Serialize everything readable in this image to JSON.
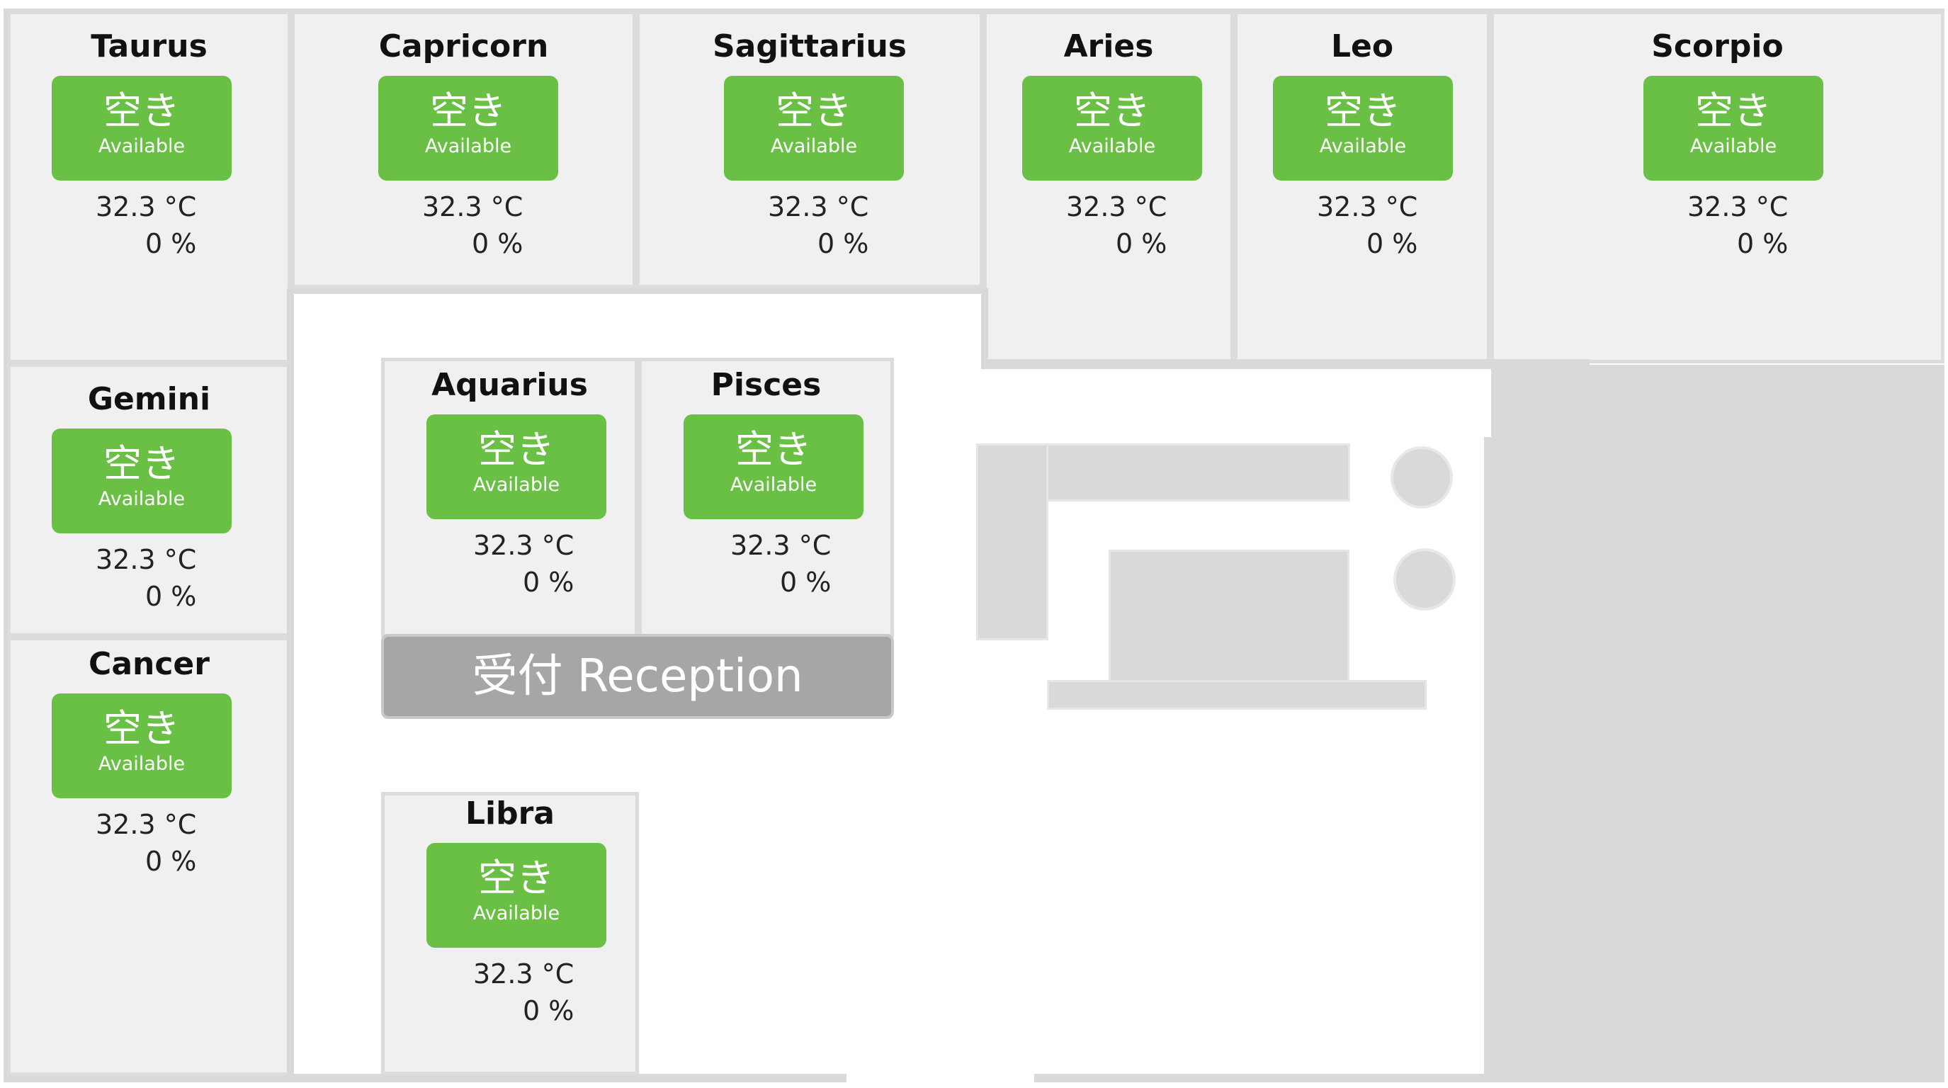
{
  "rooms": [
    {
      "name": "Taurus",
      "status_ja": "空き",
      "status_en": "Available",
      "temperature": "32.3 °C",
      "humidity": "0 %"
    },
    {
      "name": "Capricorn",
      "status_ja": "空き",
      "status_en": "Available",
      "temperature": "32.3 °C",
      "humidity": "0 %"
    },
    {
      "name": "Sagittarius",
      "status_ja": "空き",
      "status_en": "Available",
      "temperature": "32.3 °C",
      "humidity": "0 %"
    },
    {
      "name": "Aries",
      "status_ja": "空き",
      "status_en": "Available",
      "temperature": "32.3 °C",
      "humidity": "0 %"
    },
    {
      "name": "Leo",
      "status_ja": "空き",
      "status_en": "Available",
      "temperature": "32.3 °C",
      "humidity": "0 %"
    },
    {
      "name": "Scorpio",
      "status_ja": "空き",
      "status_en": "Available",
      "temperature": "32.3 °C",
      "humidity": "0 %"
    },
    {
      "name": "Gemini",
      "status_ja": "空き",
      "status_en": "Available",
      "temperature": "32.3 °C",
      "humidity": "0 %"
    },
    {
      "name": "Aquarius",
      "status_ja": "空き",
      "status_en": "Available",
      "temperature": "32.3 °C",
      "humidity": "0 %"
    },
    {
      "name": "Pisces",
      "status_ja": "空き",
      "status_en": "Available",
      "temperature": "32.3 °C",
      "humidity": "0 %"
    },
    {
      "name": "Cancer",
      "status_ja": "空き",
      "status_en": "Available",
      "temperature": "32.3 °C",
      "humidity": "0 %"
    },
    {
      "name": "Libra",
      "status_ja": "空き",
      "status_en": "Available",
      "temperature": "32.3 °C",
      "humidity": "0 %"
    }
  ],
  "reception": {
    "label": "受付 Reception"
  },
  "colors": {
    "available": "#6abf45",
    "room_bg": "#f0f0f0",
    "reception_bg": "#a6a6a6",
    "furniture": "#d9d9d9"
  }
}
